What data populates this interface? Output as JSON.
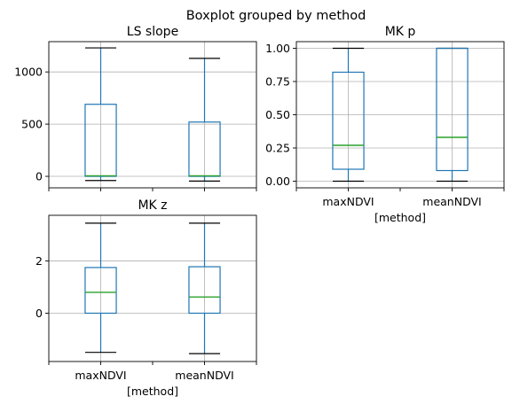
{
  "suptitle": "Boxplot grouped by method",
  "chart_data": [
    {
      "type": "box",
      "title": "LS slope",
      "xlabel": "",
      "categories": [
        "maxNDVI",
        "meanNDVI"
      ],
      "show_xticklabels": false,
      "ylim": [
        -110,
        1290
      ],
      "yticks": [
        0,
        500,
        1000
      ],
      "yticklabels": [
        "0",
        "500",
        "1000"
      ],
      "grid": true,
      "boxes": [
        {
          "whislo": -40,
          "q1": 0,
          "med": 5,
          "q3": 690,
          "whishi": 1230
        },
        {
          "whislo": -45,
          "q1": 0,
          "med": 5,
          "q3": 520,
          "whishi": 1130
        }
      ]
    },
    {
      "type": "box",
      "title": "MK p",
      "xlabel": "[method]",
      "categories": [
        "maxNDVI",
        "meanNDVI"
      ],
      "show_xticklabels": true,
      "ylim": [
        -0.05,
        1.05
      ],
      "yticks": [
        0,
        0.25,
        0.5,
        0.75,
        1.0
      ],
      "yticklabels": [
        "0.00",
        "0.25",
        "0.50",
        "0.75",
        "1.00"
      ],
      "grid": true,
      "boxes": [
        {
          "whislo": 0.0,
          "q1": 0.09,
          "med": 0.27,
          "q3": 0.82,
          "whishi": 1.0
        },
        {
          "whislo": 0.0,
          "q1": 0.08,
          "med": 0.33,
          "q3": 1.0,
          "whishi": 1.0
        }
      ]
    },
    {
      "type": "box",
      "title": "MK z",
      "xlabel": "[method]",
      "categories": [
        "maxNDVI",
        "meanNDVI"
      ],
      "show_xticklabels": true,
      "ylim": [
        -1.85,
        3.75
      ],
      "yticks": [
        0,
        2
      ],
      "yticklabels": [
        "0",
        "2"
      ],
      "grid": true,
      "boxes": [
        {
          "whislo": -1.5,
          "q1": 0.0,
          "med": 0.8,
          "q3": 1.75,
          "whishi": 3.45
        },
        {
          "whislo": -1.55,
          "q1": 0.0,
          "med": 0.62,
          "q3": 1.78,
          "whishi": 3.45
        }
      ]
    }
  ]
}
